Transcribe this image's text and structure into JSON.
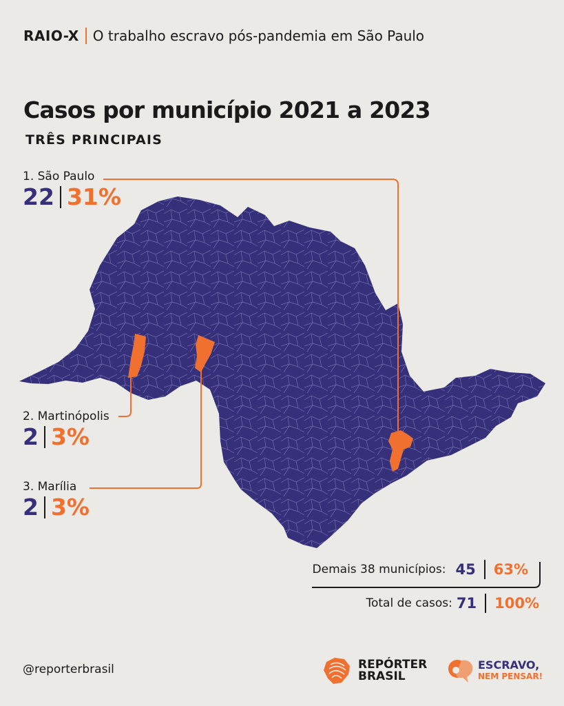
{
  "header": {
    "kicker_strong": "RAIO-X",
    "kicker_text": "O trabalho escravo pós-pandemia em São Paulo",
    "title": "Casos por município 2021 a 2023",
    "subtitle": "TRÊS PRINCIPAIS"
  },
  "colors": {
    "background": "#ebeae6",
    "map_fill": "#36307a",
    "highlight": "#f07030",
    "text": "#1a1a1a"
  },
  "top_municipalities": [
    {
      "label": "1. São Paulo",
      "cases": "22",
      "share": "31%"
    },
    {
      "label": "2. Martinópolis",
      "cases": "2",
      "share": "3%"
    },
    {
      "label": "3. Marília",
      "cases": "2",
      "share": "3%"
    }
  ],
  "summary": {
    "others_label": "Demais 38 municípios:",
    "others_cases": "45",
    "others_share": "63%",
    "total_label": "Total de casos:",
    "total_cases": "71",
    "total_share": "100%"
  },
  "footer": {
    "handle": "@reporterbrasil",
    "logo1_line1": "REPÓRTER",
    "logo1_line2": "BRASIL",
    "logo2_line1": "ESCRAVO,",
    "logo2_line2": "NEM PENSAR!",
    "logo1_icon": "fingerprint-map-icon",
    "logo2_icon": "speech-bubble-icon"
  }
}
